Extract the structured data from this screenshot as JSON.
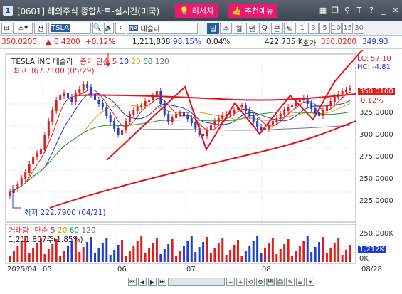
{
  "window": {
    "number": "1",
    "title": "[0601] 해외주식 종합차트-실시간(미국)",
    "research_label": "리서치",
    "recommend_label": "추천메뉴",
    "icons": [
      "grid-icon",
      "window-icon",
      "pin-icon",
      "text-icon",
      "help-icon",
      "minimize-icon",
      "close-icon"
    ]
  },
  "toolbar": {
    "type_label": "주",
    "prev_label": "전",
    "symbol": "TSLA",
    "market_badge": "NA",
    "name": "테슬라",
    "periods": [
      "일",
      "주",
      "월",
      "년",
      "Q",
      "분",
      "틱"
    ],
    "active_period": "일",
    "numbers": [
      "1",
      "3",
      "5",
      "10",
      "15",
      "30"
    ]
  },
  "quote": {
    "price": "350.0200",
    "change": "0.4200",
    "change_pct": "+0.12%",
    "volume": "1,211,808",
    "vol_ratio": "98.15%",
    "turnover": "0.04%",
    "amount": "422,735 K",
    "bid_label": "호가",
    "bid_price": "350.0200",
    "ask_price": "349.93"
  },
  "price_panel": {
    "name": "TESLA INC  테슬라",
    "ma_label": "종가 단순",
    "ma_periods": [
      "5",
      "10",
      "20",
      "60",
      "120"
    ],
    "high_label": "최고 367.7100 (05/29)",
    "low_label": "최저 222.7900 (04/21)",
    "lc_label": "LC: 57.10",
    "hc_label": "HC: -4.81",
    "current_tag": "350.0100",
    "pct_tag": "0.12%",
    "y_ticks": [
      "325,0000",
      "300,0000",
      "275,0000",
      "250,0000",
      "225,0000"
    ]
  },
  "volume_panel": {
    "label": "거래량",
    "ma_label": "단순",
    "ma_periods": [
      "5",
      "20",
      "60",
      "120"
    ],
    "volume_text": "1,211,807주(1.85%)",
    "y_ticks": [
      "250,000K",
      "0K"
    ],
    "current_tag": "1,212K"
  },
  "x_axis": {
    "labels": [
      "2025/04",
      "05",
      "06",
      "07",
      "08",
      "08/28"
    ]
  },
  "colors": {
    "up": "#e01e1e",
    "down": "#1f3fd0",
    "ma5": "#e01e1e",
    "ma10": "#2433c7",
    "ma20": "#d7a300",
    "ma60": "#1d9a3a",
    "ma120": "#777777"
  }
}
